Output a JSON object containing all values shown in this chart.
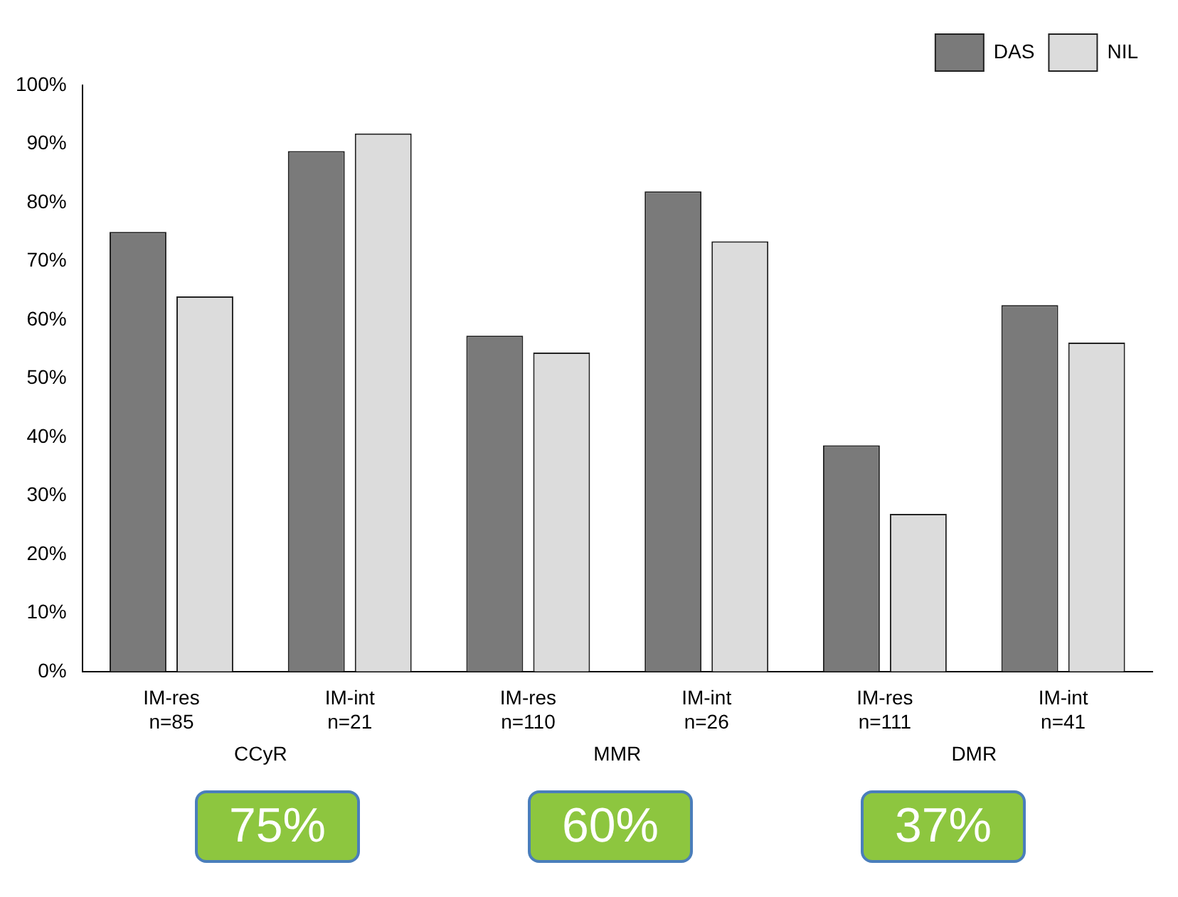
{
  "chart_data": {
    "type": "bar",
    "categories": [
      "IM-res\nn=85",
      "IM-int\nn=21",
      "IM-res\nn=110",
      "IM-int\nn=26",
      "IM-res\nn=111",
      "IM-int\nn=41"
    ],
    "series": [
      {
        "name": "DAS",
        "color": "#7a7a7a",
        "values": [
          75,
          88.8,
          57.3,
          81.9,
          38.6,
          62.5
        ]
      },
      {
        "name": "NIL",
        "color": "#dcdcdc",
        "values": [
          64,
          91.8,
          54.4,
          73.4,
          26.9,
          56.1
        ]
      }
    ],
    "ylim": [
      0,
      100
    ],
    "yticks": [
      {
        "value": 0,
        "label": "0%"
      },
      {
        "value": 10,
        "label": "10%"
      },
      {
        "value": 20,
        "label": "20%"
      },
      {
        "value": 30,
        "label": "30%"
      },
      {
        "value": 40,
        "label": "40%"
      },
      {
        "value": 50,
        "label": "50%"
      },
      {
        "value": 60,
        "label": "60%"
      },
      {
        "value": 70,
        "label": "70%"
      },
      {
        "value": 80,
        "label": "80%"
      },
      {
        "value": 90,
        "label": "90%"
      },
      {
        "value": 100,
        "label": "100%"
      }
    ],
    "annotations": [
      "CCyR",
      "MMR",
      "DMR",
      "75%",
      "60%",
      "37%"
    ],
    "legend": "top right",
    "grid": false
  }
}
